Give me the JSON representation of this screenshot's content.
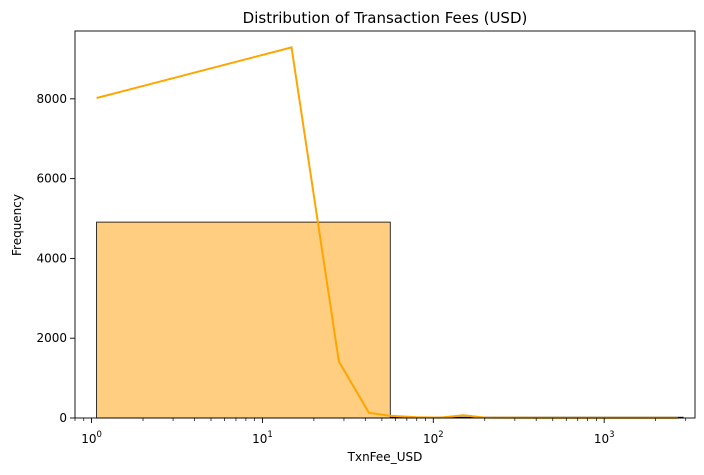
{
  "chart_data": {
    "type": "bar",
    "title": "Distribution of Transaction Fees (USD)",
    "xlabel": "TxnFee_USD",
    "ylabel": "Frequency",
    "x_scale": "log",
    "xlim": [
      0.8,
      3400
    ],
    "ylim": [
      0,
      9700
    ],
    "x_ticks": [
      {
        "base": "10",
        "exp": "0",
        "value": 1
      },
      {
        "base": "10",
        "exp": "1",
        "value": 10
      },
      {
        "base": "10",
        "exp": "2",
        "value": 100
      },
      {
        "base": "10",
        "exp": "3",
        "value": 1000
      }
    ],
    "y_ticks": [
      {
        "label": "0",
        "value": 0
      },
      {
        "label": "2000",
        "value": 2000
      },
      {
        "label": "4000",
        "value": 4000
      },
      {
        "label": "6000",
        "value": 6000
      },
      {
        "label": "8000",
        "value": 8000
      }
    ],
    "bins": [
      {
        "x0": 1.07,
        "x1": 56,
        "count": 4910
      },
      {
        "x0": 56,
        "x1": 110,
        "count": 20
      },
      {
        "x0": 110,
        "x1": 2900,
        "count": 20
      }
    ],
    "kde_line": {
      "x": [
        1.07,
        14.8,
        28,
        42,
        56,
        80,
        110,
        150,
        200,
        500,
        1000,
        2700
      ],
      "y": [
        8020,
        9290,
        1420,
        130,
        55,
        20,
        8,
        70,
        8,
        3,
        2,
        2
      ]
    },
    "colors": {
      "bar_fill": "#ffce80",
      "bar_edge": "#000000",
      "line": "#ffa500"
    }
  }
}
